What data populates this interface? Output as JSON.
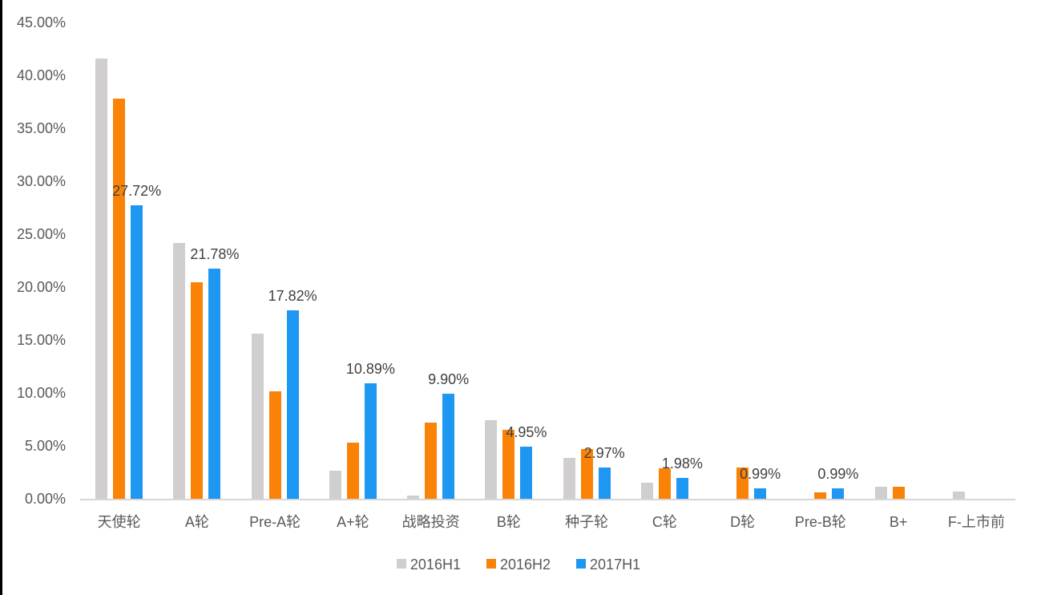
{
  "chart_data": {
    "type": "bar",
    "title": "",
    "xlabel": "",
    "ylabel": "",
    "ylim": [
      0,
      45
    ],
    "grid": false,
    "legend_position": "bottom",
    "y_tick_labels": [
      "45.00%",
      "40.00%",
      "35.00%",
      "30.00%",
      "25.00%",
      "20.00%",
      "15.00%",
      "10.00%",
      "5.00%",
      "0.00%"
    ],
    "y_tick_values": [
      45,
      40,
      35,
      30,
      25,
      20,
      15,
      10,
      5,
      0
    ],
    "categories": [
      "天使轮",
      "A轮",
      "Pre-A轮",
      "A+轮",
      "战略投资",
      "B轮",
      "种子轮",
      "C轮",
      "D轮",
      "Pre-B轮",
      "B+",
      "F-上市前"
    ],
    "series": [
      {
        "name": "2016H1",
        "color": "#d0cece",
        "values": [
          41.58,
          24.13,
          15.57,
          2.64,
          0.3,
          7.39,
          3.87,
          1.48,
          0,
          0,
          1.15,
          0.7
        ]
      },
      {
        "name": "2016H2",
        "color": "#fa8307",
        "values": [
          37.8,
          20.43,
          10.19,
          5.33,
          7.17,
          6.55,
          4.67,
          2.9,
          2.97,
          0.58,
          1.15,
          0
        ]
      },
      {
        "name": "2017H1",
        "color": "#1e97f3",
        "values": [
          27.72,
          21.78,
          17.82,
          10.89,
          9.9,
          4.95,
          2.97,
          1.98,
          0.99,
          0.99,
          0,
          0
        ]
      }
    ],
    "data_labels": {
      "series": "2017H1",
      "labels": [
        "27.72%",
        "21.78%",
        "17.82%",
        "10.89%",
        "9.90%",
        "4.95%",
        "2.97%",
        "1.98%",
        "0.99%",
        "0.99%",
        "",
        ""
      ]
    }
  },
  "layout_colors": {
    "axis_line": "#d6d6d6",
    "tick_text": "#595959",
    "label_text": "#404040",
    "background": "#ffffff",
    "left_border": "#000000"
  }
}
